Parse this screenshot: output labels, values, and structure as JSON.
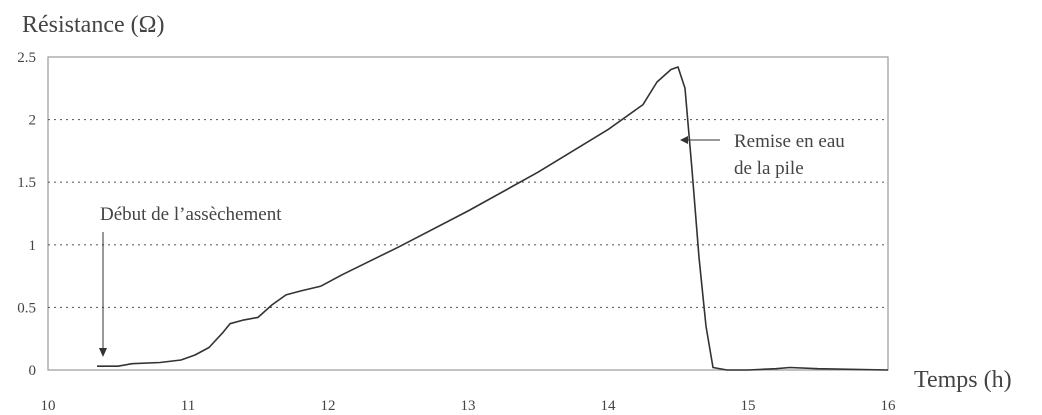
{
  "chart_data": {
    "type": "line",
    "title": "",
    "xlabel": "Temps (h)",
    "ylabel": "Résistance (Ω)",
    "xlim": [
      10,
      16
    ],
    "ylim": [
      0,
      2.5
    ],
    "x_ticks": [
      "10",
      "11",
      "12",
      "13",
      "14",
      "15",
      "16"
    ],
    "y_ticks": [
      "0",
      "0.5",
      "1",
      "1.5",
      "2",
      "2.5"
    ],
    "grid": "horizontal dotted",
    "series": [
      {
        "name": "",
        "color": "#333333",
        "x": [
          10.35,
          10.5,
          10.6,
          10.8,
          10.95,
          11.05,
          11.15,
          11.25,
          11.3,
          11.4,
          11.5,
          11.6,
          11.7,
          11.8,
          11.95,
          12.1,
          12.5,
          13.0,
          13.5,
          14.0,
          14.25,
          14.35,
          14.45,
          14.5,
          14.55,
          14.6,
          14.65,
          14.7,
          14.75,
          14.85,
          15.0,
          15.2,
          15.3,
          15.5,
          16.0
        ],
        "y": [
          0.03,
          0.03,
          0.05,
          0.06,
          0.08,
          0.12,
          0.18,
          0.3,
          0.37,
          0.4,
          0.42,
          0.52,
          0.6,
          0.63,
          0.67,
          0.76,
          0.98,
          1.27,
          1.58,
          1.92,
          2.12,
          2.3,
          2.4,
          2.42,
          2.25,
          1.6,
          0.9,
          0.35,
          0.02,
          0.0,
          0.0,
          0.01,
          0.02,
          0.01,
          0.0
        ]
      }
    ],
    "annotations": [
      {
        "text": "Début de l’assèchement",
        "x": 10.35,
        "y": 0.03
      },
      {
        "text_lines": [
          "Remise en eau",
          "de la pile"
        ],
        "x": 14.65,
        "y": 1.8
      }
    ]
  }
}
